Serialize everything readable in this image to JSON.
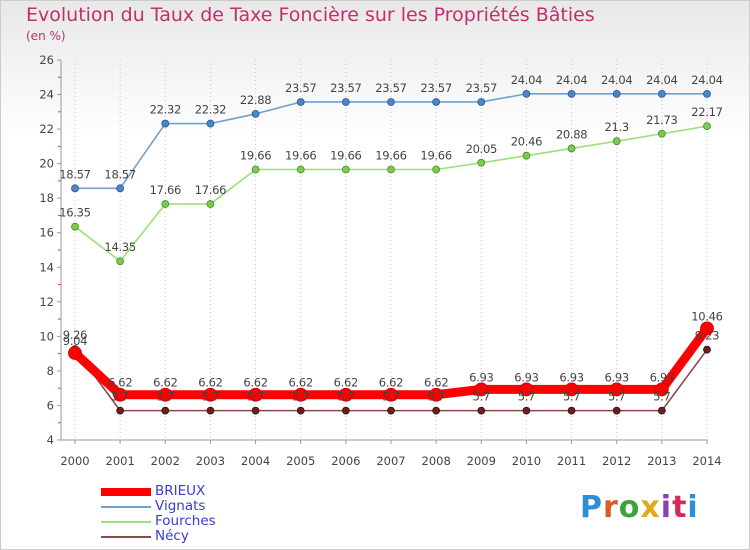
{
  "header": {
    "title": "Evolution du Taux de Taxe Foncière sur les Propriétés Bâties",
    "unit": "(en %)"
  },
  "logo": {
    "text": "Proxiti",
    "colors": [
      "#2a8fd6",
      "#e05a1c",
      "#3aa33a",
      "#e0a91c",
      "#8b3fb0",
      "#d62a5a",
      "#2a8fd6"
    ]
  },
  "chart_data": {
    "type": "line",
    "x": [
      2000,
      2001,
      2002,
      2003,
      2004,
      2005,
      2006,
      2007,
      2008,
      2009,
      2010,
      2011,
      2012,
      2013,
      2014
    ],
    "ylim": [
      4,
      26
    ],
    "yticks": [
      4,
      6,
      8,
      10,
      12,
      14,
      16,
      18,
      20,
      22,
      24,
      26
    ],
    "grid": "dotted-vertical",
    "legend": "bottom-left",
    "series": [
      {
        "name": "BRIEUX",
        "color": "#ff0000",
        "text_color": "#3b3bd0",
        "values": [
          9.04,
          6.62,
          6.62,
          6.62,
          6.62,
          6.62,
          6.62,
          6.62,
          6.62,
          6.93,
          6.93,
          6.93,
          6.93,
          6.93,
          10.46
        ],
        "labels": [
          "9.04",
          "6.62",
          "6.62",
          "6.62",
          "6.62",
          "6.62",
          "6.62",
          "6.62",
          "6.62",
          "6.93",
          "6.93",
          "6.93",
          "6.93",
          "6.93",
          "10.46"
        ]
      },
      {
        "name": "Vignats",
        "color": "#6fa0d0",
        "text_color": "#3b3bd0",
        "values": [
          18.57,
          18.57,
          22.32,
          22.32,
          22.88,
          23.57,
          23.57,
          23.57,
          23.57,
          23.57,
          24.04,
          24.04,
          24.04,
          24.04,
          24.04
        ],
        "labels": [
          "18.57",
          "18.57",
          "22.32",
          "22.32",
          "22.88",
          "23.57",
          "23.57",
          "23.57",
          "23.57",
          "23.57",
          "24.04",
          "24.04",
          "24.04",
          "24.04",
          "24.04"
        ]
      },
      {
        "name": "Fourches",
        "color": "#9ce07a",
        "text_color": "#3b3bd0",
        "values": [
          16.35,
          14.35,
          17.66,
          17.66,
          19.66,
          19.66,
          19.66,
          19.66,
          19.66,
          20.05,
          20.46,
          20.88,
          21.3,
          21.73,
          22.17
        ],
        "labels": [
          "16.35",
          "14.35",
          "17.66",
          "17.66",
          "19.66",
          "19.66",
          "19.66",
          "19.66",
          "19.66",
          "20.05",
          "20.46",
          "20.88",
          "21.3",
          "21.73",
          "22.17"
        ]
      },
      {
        "name": "Nécy",
        "color": "#8a4a4a",
        "text_color": "#3b3bd0",
        "values": [
          9.26,
          5.7,
          5.7,
          5.7,
          5.7,
          5.7,
          5.7,
          5.7,
          5.7,
          5.7,
          5.7,
          5.7,
          5.7,
          5.7,
          9.23
        ],
        "labels": [
          "9.26",
          "5.7",
          "5.7",
          "5.7",
          "5.7",
          "5.7",
          "5.7",
          "5.7",
          "5.7",
          "5.7",
          "5.7",
          "5.7",
          "5.7",
          "5.7",
          "9.23"
        ]
      }
    ]
  }
}
